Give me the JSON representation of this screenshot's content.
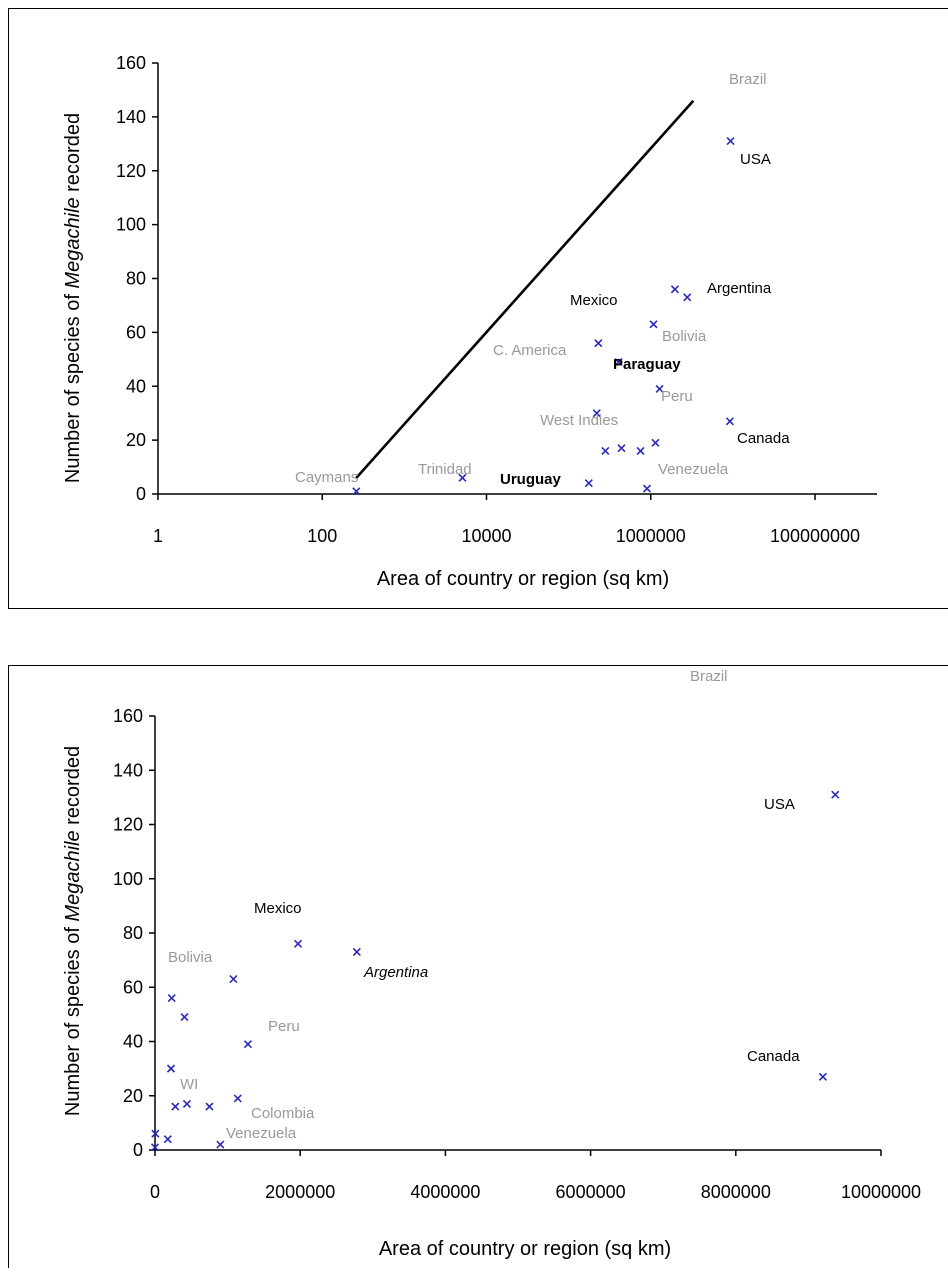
{
  "chart_data": [
    {
      "type": "scatter",
      "x_scale": "log",
      "xlabel": "Area of country or region (sq km)",
      "ylabel_parts": [
        "Number of species of ",
        "Megachile",
        " recorded"
      ],
      "xlim": [
        1,
        600000000
      ],
      "ylim": [
        0,
        160
      ],
      "x_ticks": [
        1,
        100,
        10000,
        1000000,
        100000000
      ],
      "x_tick_labels": [
        "1",
        "100",
        "10000",
        "1000000",
        "100000000"
      ],
      "y_ticks": [
        0,
        20,
        40,
        60,
        80,
        100,
        120,
        140,
        160
      ],
      "y_tick_labels": [
        "0",
        "20",
        "40",
        "60",
        "80",
        "100",
        "120",
        "140",
        "160"
      ],
      "points": [
        {
          "x": 260,
          "y": 1
        },
        {
          "x": 5100,
          "y": 6
        },
        {
          "x": 176000,
          "y": 4
        },
        {
          "x": 220000,
          "y": 30
        },
        {
          "x": 230000,
          "y": 56
        },
        {
          "x": 280000,
          "y": 16
        },
        {
          "x": 406000,
          "y": 49
        },
        {
          "x": 440000,
          "y": 17
        },
        {
          "x": 750000,
          "y": 16
        },
        {
          "x": 900000,
          "y": 2
        },
        {
          "x": 1080000,
          "y": 63
        },
        {
          "x": 1140000,
          "y": 19
        },
        {
          "x": 1280000,
          "y": 39
        },
        {
          "x": 1970000,
          "y": 76
        },
        {
          "x": 2780000,
          "y": 73
        },
        {
          "x": 9200000,
          "y": 27
        },
        {
          "x": 9370000,
          "y": 131
        }
      ],
      "trend_line": [
        {
          "x": 260,
          "y": 6
        },
        {
          "x": 3300000,
          "y": 146
        }
      ],
      "labels": [
        {
          "text": "Brazil",
          "color": "#999999",
          "weight": "normal",
          "style": "normal"
        },
        {
          "text": "USA",
          "color": "#000000",
          "weight": "normal",
          "style": "normal"
        },
        {
          "text": "Argentina",
          "color": "#000000",
          "weight": "normal",
          "style": "normal"
        },
        {
          "text": "Mexico",
          "color": "#000000",
          "weight": "normal",
          "style": "normal"
        },
        {
          "text": "Bolivia",
          "color": "#999999",
          "weight": "normal",
          "style": "normal"
        },
        {
          "text": "C. America",
          "color": "#999999",
          "weight": "normal",
          "style": "normal"
        },
        {
          "text": "Paraguay",
          "color": "#000000",
          "weight": "bold",
          "style": "normal"
        },
        {
          "text": "Peru",
          "color": "#999999",
          "weight": "normal",
          "style": "normal"
        },
        {
          "text": "West Indies",
          "color": "#999999",
          "weight": "normal",
          "style": "normal"
        },
        {
          "text": "Canada",
          "color": "#000000",
          "weight": "normal",
          "style": "normal"
        },
        {
          "text": "Caymans",
          "color": "#999999",
          "weight": "normal",
          "style": "normal"
        },
        {
          "text": "Trinidad",
          "color": "#999999",
          "weight": "normal",
          "style": "normal"
        },
        {
          "text": "Uruguay",
          "color": "#000000",
          "weight": "bold",
          "style": "normal"
        },
        {
          "text": "Venezuela",
          "color": "#999999",
          "weight": "normal",
          "style": "normal"
        }
      ]
    },
    {
      "type": "scatter",
      "x_scale": "linear",
      "xlabel": "Area of country or region (sq km)",
      "ylabel_parts": [
        "Number of species of ",
        "Megachile",
        " recorded"
      ],
      "xlim": [
        0,
        10000000
      ],
      "ylim": [
        0,
        160
      ],
      "x_ticks": [
        0,
        2000000,
        4000000,
        6000000,
        8000000,
        10000000
      ],
      "x_tick_labels": [
        "0",
        "2000000",
        "4000000",
        "6000000",
        "8000000",
        "10000000"
      ],
      "y_ticks": [
        0,
        20,
        40,
        60,
        80,
        100,
        120,
        140,
        160
      ],
      "y_tick_labels": [
        "0",
        "20",
        "40",
        "60",
        "80",
        "100",
        "120",
        "140",
        "160"
      ],
      "points": [
        {
          "x": 260,
          "y": 1
        },
        {
          "x": 5100,
          "y": 6
        },
        {
          "x": 176000,
          "y": 4
        },
        {
          "x": 220000,
          "y": 30
        },
        {
          "x": 230000,
          "y": 56
        },
        {
          "x": 280000,
          "y": 16
        },
        {
          "x": 406000,
          "y": 49
        },
        {
          "x": 440000,
          "y": 17
        },
        {
          "x": 750000,
          "y": 16
        },
        {
          "x": 900000,
          "y": 2
        },
        {
          "x": 1080000,
          "y": 63
        },
        {
          "x": 1140000,
          "y": 19
        },
        {
          "x": 1280000,
          "y": 39
        },
        {
          "x": 1970000,
          "y": 76
        },
        {
          "x": 2780000,
          "y": 73
        },
        {
          "x": 9200000,
          "y": 27
        },
        {
          "x": 9370000,
          "y": 131
        }
      ],
      "labels": [
        {
          "text": "Brazil",
          "color": "#999999",
          "weight": "normal",
          "style": "normal"
        },
        {
          "text": "USA",
          "color": "#000000",
          "weight": "normal",
          "style": "normal"
        },
        {
          "text": "Mexico",
          "color": "#000000",
          "weight": "normal",
          "style": "normal"
        },
        {
          "text": "Argentina",
          "color": "#000000",
          "weight": "normal",
          "style": "italic"
        },
        {
          "text": "Bolivia",
          "color": "#999999",
          "weight": "normal",
          "style": "normal"
        },
        {
          "text": "Peru",
          "color": "#999999",
          "weight": "normal",
          "style": "normal"
        },
        {
          "text": "WI",
          "color": "#999999",
          "weight": "normal",
          "style": "normal"
        },
        {
          "text": "Colombia",
          "color": "#999999",
          "weight": "normal",
          "style": "normal"
        },
        {
          "text": "Venezuela",
          "color": "#999999",
          "weight": "normal",
          "style": "normal"
        },
        {
          "text": "Canada",
          "color": "#000000",
          "weight": "normal",
          "style": "normal"
        }
      ]
    }
  ],
  "colors": {
    "marker": "#2a2ab8",
    "axis": "#000000",
    "frame": "#000000"
  }
}
